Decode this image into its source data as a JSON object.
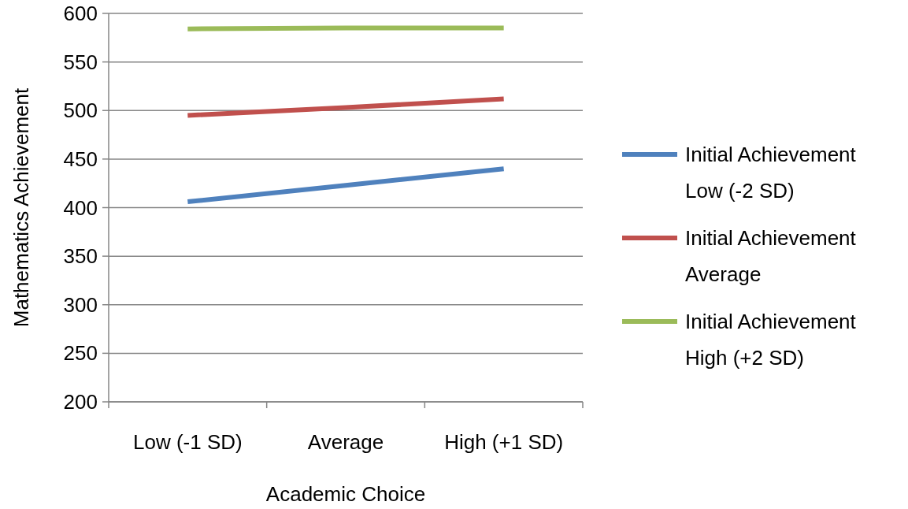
{
  "chart_data": {
    "type": "line",
    "xlabel": "Academic Choice",
    "ylabel": "Mathematics Achievement",
    "categories": [
      "Low (-1 SD)",
      "Average",
      "High (+1 SD)"
    ],
    "series": [
      {
        "name": "Initial Achievement Low (-2 SD)",
        "color": "#4f81bd",
        "values": [
          406,
          423,
          440
        ]
      },
      {
        "name": "Initial Achievement Average",
        "color": "#c0504d",
        "values": [
          495,
          503,
          512
        ]
      },
      {
        "name": "Initial Achievement High (+2 SD)",
        "color": "#9bbb59",
        "values": [
          584,
          585,
          585
        ]
      }
    ],
    "ylim": [
      200,
      600
    ],
    "yticks": [
      200,
      250,
      300,
      350,
      400,
      450,
      500,
      550,
      600
    ],
    "grid": "y",
    "legend": "right",
    "marker": "none",
    "line_style": "solid"
  }
}
